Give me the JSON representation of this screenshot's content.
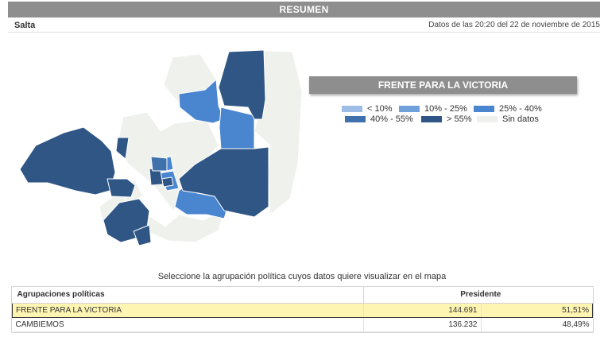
{
  "header": {
    "title": "RESUMEN"
  },
  "subheader": {
    "province": "Salta",
    "timestamp": "Datos de las 20:20 del 22 de noviembre de 2015"
  },
  "map": {
    "selected_party": "FRENTE PARA LA VICTORIA",
    "colors": {
      "lt10": "#9dbde6",
      "r10_25": "#6fa1dc",
      "r25_40": "#4a86d0",
      "r40_55": "#3f71ad",
      "gt55": "#2f5685",
      "no_data": "#eff1ec"
    }
  },
  "legend": {
    "items": [
      {
        "label": "< 10%",
        "color": "#9dbde6"
      },
      {
        "label": "10% - 25%",
        "color": "#6fa1dc"
      },
      {
        "label": "25% - 40%",
        "color": "#4a86d0"
      },
      {
        "label": "40% - 55%",
        "color": "#3f71ad"
      },
      {
        "label": "> 55%",
        "color": "#2f5685"
      },
      {
        "label": "Sin datos",
        "color": "#eff1ec"
      }
    ]
  },
  "instruction": "Seleccione la agrupación política cuyos datos quiere visualizar en el mapa",
  "results": {
    "col_party": "Agrupaciones políticas",
    "col_president": "Presidente",
    "rows": [
      {
        "party": "FRENTE PARA LA VICTORIA",
        "votes": "144.691",
        "percent": "51,51%",
        "selected": true
      },
      {
        "party": "CAMBIEMOS",
        "votes": "136.232",
        "percent": "48,49%",
        "selected": false
      }
    ]
  }
}
